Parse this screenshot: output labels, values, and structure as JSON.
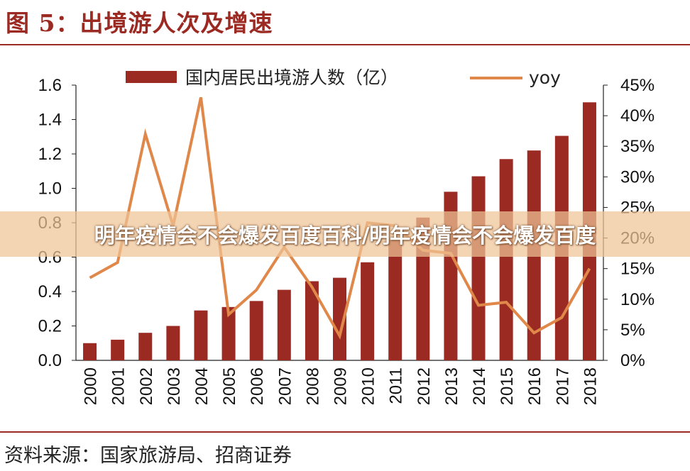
{
  "figure": {
    "title": "图 5：出境游人次及增速",
    "source": "资料来源：国家旅游局、招商证券"
  },
  "watermark": {
    "text": "明年疫情会不会爆发百度百科/明年疫情会不会爆发百度"
  },
  "colors": {
    "bar": "#9b2a23",
    "line": "#e0874a",
    "accent": "#9b2a23"
  },
  "chart_data": {
    "type": "bar",
    "categories": [
      "2000",
      "2001",
      "2002",
      "2003",
      "2004",
      "2005",
      "2006",
      "2007",
      "2008",
      "2009",
      "2010",
      "2011",
      "2012",
      "2013",
      "2014",
      "2015",
      "2016",
      "2017",
      "2018"
    ],
    "series": [
      {
        "name": "国内居民出境游人数（亿）",
        "type": "bar",
        "axis": "left",
        "values": [
          0.1,
          0.12,
          0.16,
          0.2,
          0.29,
          0.31,
          0.345,
          0.41,
          0.46,
          0.48,
          0.57,
          0.7,
          0.83,
          0.98,
          1.07,
          1.17,
          1.22,
          1.305,
          1.5
        ]
      },
      {
        "name": "yoy",
        "type": "line",
        "axis": "right",
        "values": [
          13.5,
          16.0,
          37.0,
          22.0,
          43.0,
          7.5,
          11.5,
          18.5,
          12.0,
          4.0,
          22.5,
          22.0,
          18.0,
          17.5,
          9.0,
          9.5,
          4.5,
          7.0,
          15.0
        ]
      }
    ],
    "y_left": {
      "ylim": [
        0,
        1.6
      ],
      "ticks": [
        "0.0",
        "0.2",
        "0.4",
        "0.6",
        "0.8",
        "1.0",
        "1.2",
        "1.4",
        "1.6"
      ]
    },
    "y_right": {
      "ylim": [
        0,
        45
      ],
      "ticks": [
        "0%",
        "5%",
        "10%",
        "15%",
        "20%",
        "25%",
        "30%",
        "35%",
        "40%",
        "45%"
      ]
    },
    "grid": false,
    "legend_position": "top"
  }
}
